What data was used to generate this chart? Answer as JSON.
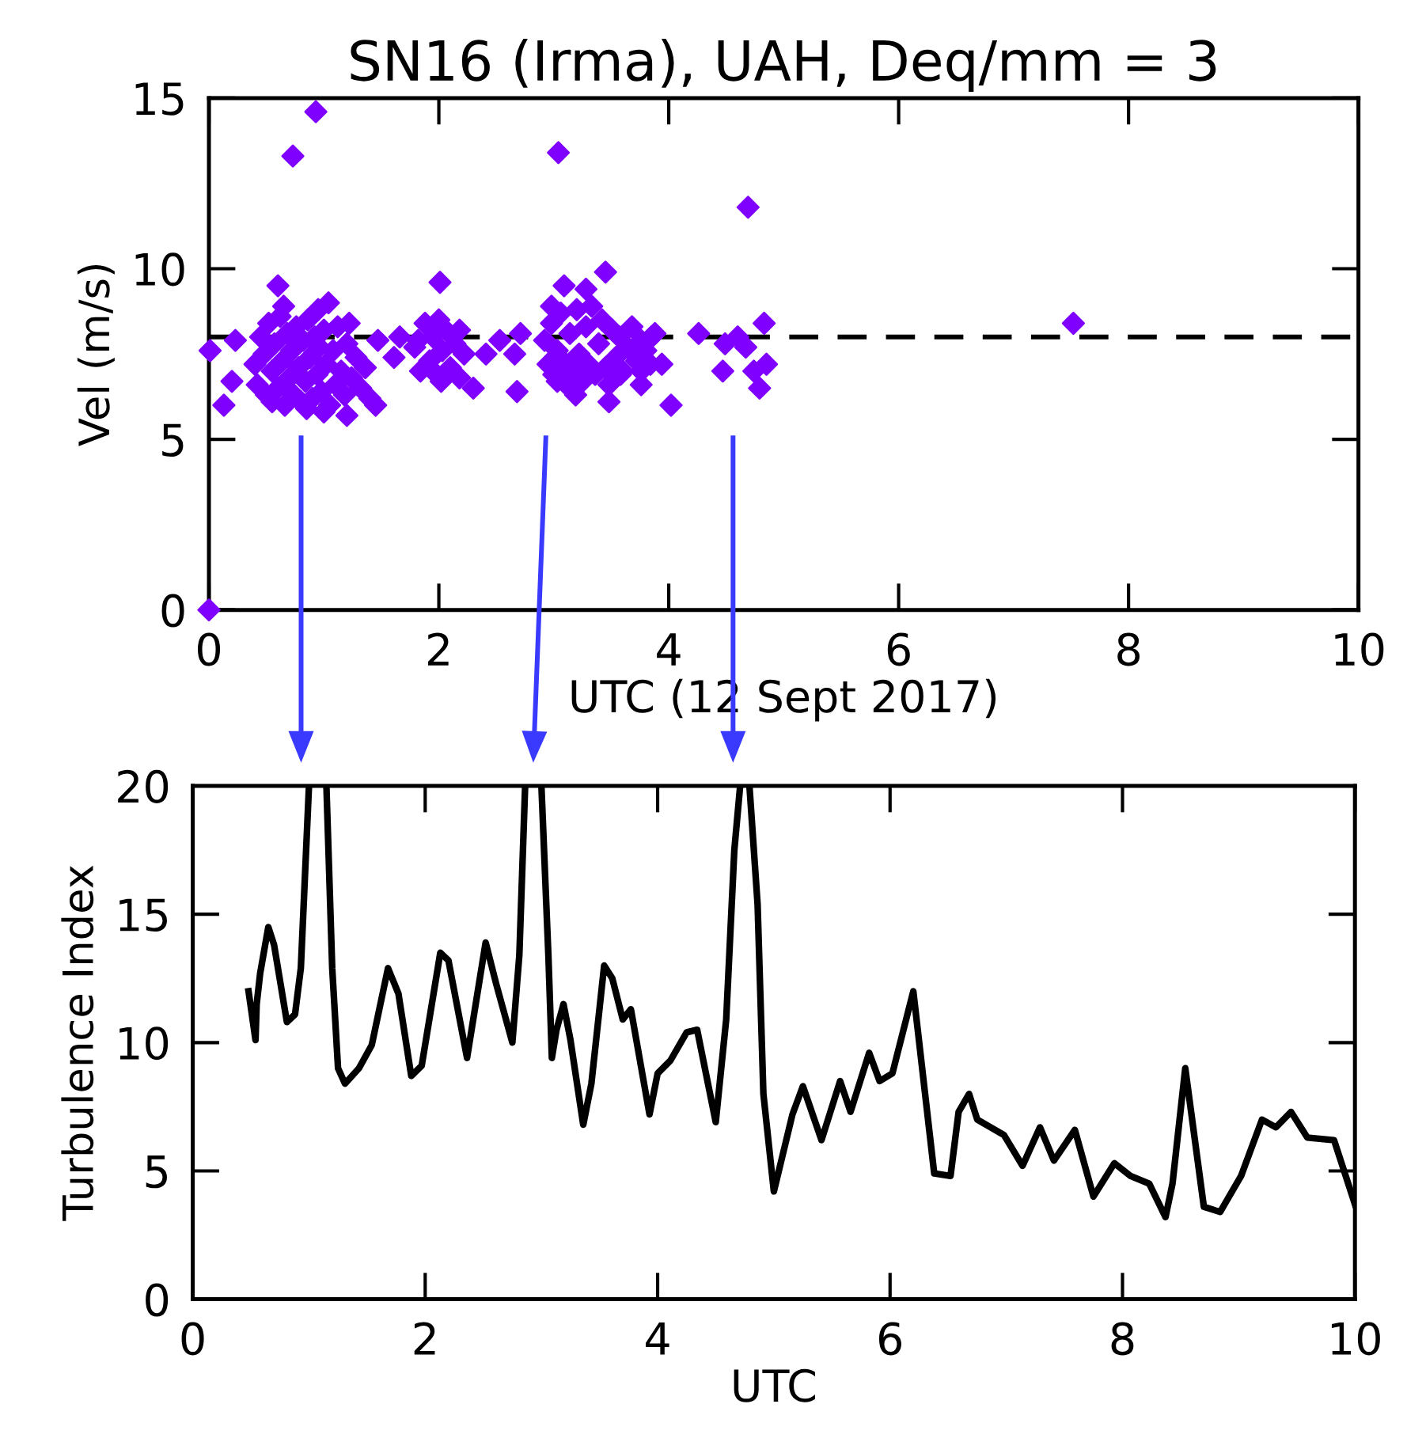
{
  "chart_data": [
    {
      "type": "scatter",
      "title": "SN16 (Irma), UAH, Deq/mm = 3",
      "xlabel": "UTC (12 Sept 2017)",
      "ylabel": "Vel (m/s)",
      "marker": "diamond",
      "grid": false,
      "xlim": [
        0,
        10
      ],
      "ylim": [
        0,
        15
      ],
      "xticks": [
        0,
        2,
        4,
        6,
        8,
        10
      ],
      "yticks": [
        0,
        5,
        10,
        15
      ],
      "ref_lines": [
        {
          "axis": "y",
          "value": 8,
          "color": "#000000",
          "line_style": "dashed"
        }
      ],
      "series": [
        {
          "color": "#8000ff",
          "x": [
            0.93,
            0.73,
            3.04,
            4.69,
            3.45,
            2.01,
            0.6,
            3.09,
            0.01,
            0.2,
            0.13,
            0.23,
            1.2,
            1.45,
            1.22,
            1.04,
            1.47,
            1.61,
            1.66,
            2.0,
            1.79,
            1.84,
            2.18,
            2.3,
            2.41,
            2.53,
            2.66,
            2.68,
            2.71,
            2.02,
            2.98,
            3.28,
            3.03,
            3.19,
            3.48,
            3.58,
            3.76,
            3.94,
            4.02,
            3.76,
            3.85,
            4.26,
            4.47,
            4.6,
            4.83,
            4.85,
            4.79,
            4.74,
            4.67,
            4.49,
            7.52,
            0.0,
            0.4,
            0.42,
            0.45,
            0.48,
            0.5,
            0.52,
            0.55,
            0.57,
            0.6,
            0.62,
            0.64,
            0.66,
            0.68,
            0.7,
            0.72,
            0.74,
            0.76,
            0.78,
            0.8,
            0.82,
            0.84,
            0.86,
            0.88,
            0.9,
            0.92,
            0.94,
            0.96,
            0.98,
            1.0,
            1.02,
            1.05,
            1.08,
            1.1,
            1.12,
            1.15,
            1.18,
            1.2,
            1.24,
            1.28,
            1.32,
            1.36,
            1.4,
            0.55,
            0.85,
            1.0,
            0.65,
            0.95,
            1.82,
            1.88,
            1.92,
            1.95,
            1.98,
            2.03,
            2.06,
            2.1,
            2.14,
            2.18,
            2.22,
            2.92,
            2.95,
            2.98,
            3.0,
            3.03,
            3.06,
            3.08,
            3.11,
            3.14,
            3.17,
            3.2,
            3.22,
            3.25,
            3.28,
            3.3,
            3.33,
            3.36,
            3.39,
            3.42,
            3.45,
            3.48,
            3.51,
            3.54,
            3.57,
            3.6,
            3.64,
            3.68,
            3.72,
            3.76,
            3.8,
            3.84,
            3.88
          ],
          "values": [
            14.6,
            13.3,
            13.4,
            11.8,
            9.9,
            9.6,
            9.5,
            9.5,
            7.6,
            6.7,
            6.0,
            7.9,
            5.7,
            6.0,
            8.4,
            9.0,
            7.9,
            7.4,
            8.0,
            8.5,
            7.7,
            7.0,
            8.2,
            6.5,
            7.5,
            7.9,
            7.5,
            6.4,
            8.1,
            6.7,
            8.9,
            9.4,
            6.7,
            6.3,
            6.1,
            6.9,
            6.6,
            7.2,
            6.0,
            7.0,
            8.0,
            8.1,
            7.0,
            8.0,
            8.4,
            7.2,
            6.5,
            7.0,
            7.7,
            7.8,
            8.4,
            0.0,
            7.2,
            6.6,
            8.0,
            7.5,
            6.3,
            8.4,
            7.0,
            7.8,
            6.5,
            8.6,
            7.3,
            6.0,
            8.1,
            6.8,
            7.6,
            6.3,
            8.3,
            7.1,
            6.1,
            7.9,
            6.7,
            8.5,
            7.4,
            6.2,
            8.0,
            6.9,
            7.7,
            6.4,
            8.2,
            7.2,
            6.0,
            7.6,
            6.6,
            8.3,
            7.0,
            6.3,
            7.8,
            6.8,
            7.4,
            6.5,
            7.1,
            6.2,
            6.1,
            5.9,
            5.8,
            8.9,
            8.8,
            7.9,
            8.4,
            7.3,
            8.0,
            6.9,
            7.6,
            8.2,
            7.1,
            7.8,
            6.8,
            7.5,
            7.9,
            7.2,
            8.4,
            6.9,
            7.6,
            8.7,
            7.3,
            6.6,
            8.1,
            7.0,
            8.8,
            7.5,
            6.7,
            8.3,
            7.2,
            8.9,
            6.9,
            7.8,
            8.5,
            7.1,
            6.6,
            8.2,
            7.4,
            8.0,
            7.0,
            7.7,
            8.3,
            7.3,
            7.9,
            7.6,
            7.2,
            8.1
          ]
        }
      ]
    },
    {
      "type": "line",
      "xlabel": "UTC",
      "ylabel": "Turbulence Index",
      "marker": "none",
      "line_style": "solid",
      "grid": false,
      "xlim": [
        0,
        10
      ],
      "ylim": [
        0,
        20
      ],
      "xticks": [
        0,
        2,
        4,
        6,
        8,
        10
      ],
      "yticks": [
        0,
        5,
        10,
        15,
        20
      ],
      "series": [
        {
          "color": "#000000",
          "x": [
            0.48,
            0.54,
            0.55,
            0.58,
            0.65,
            0.7,
            0.81,
            0.88,
            0.93,
            1.0,
            1.07,
            1.15,
            1.2,
            1.25,
            1.31,
            1.43,
            1.54,
            1.68,
            1.77,
            1.88,
            1.97,
            2.13,
            2.2,
            2.36,
            2.52,
            2.61,
            2.75,
            2.81,
            2.86,
            2.93,
            3.0,
            3.06,
            3.09,
            3.13,
            3.19,
            3.25,
            3.36,
            3.43,
            3.54,
            3.61,
            3.7,
            3.77,
            3.93,
            4.0,
            4.11,
            4.25,
            4.34,
            4.5,
            4.59,
            4.66,
            4.71,
            4.75,
            4.79,
            4.86,
            4.91,
            5.0,
            5.16,
            5.25,
            5.41,
            5.57,
            5.66,
            5.82,
            5.91,
            6.02,
            6.2,
            6.38,
            6.52,
            6.59,
            6.68,
            6.75,
            6.98,
            7.14,
            7.29,
            7.41,
            7.59,
            7.75,
            7.93,
            8.07,
            8.23,
            8.37,
            8.43,
            8.54,
            8.7,
            8.84,
            9.02,
            9.2,
            9.32,
            9.45,
            9.59,
            9.82,
            10.0
          ],
          "values": [
            12.0,
            10.1,
            11.5,
            12.7,
            14.5,
            13.8,
            10.8,
            11.1,
            12.9,
            20.0,
            null,
            20.0,
            12.9,
            9.0,
            8.4,
            9.0,
            9.9,
            12.9,
            11.9,
            8.7,
            9.1,
            13.5,
            13.2,
            9.4,
            13.9,
            12.3,
            10.0,
            13.4,
            20.0,
            null,
            20.0,
            13.4,
            9.4,
            10.5,
            11.5,
            10.1,
            6.8,
            8.4,
            13.0,
            12.5,
            10.9,
            11.3,
            7.2,
            8.8,
            9.3,
            10.4,
            10.5,
            6.9,
            10.9,
            17.5,
            20.0,
            null,
            20.0,
            15.4,
            8.0,
            4.2,
            7.2,
            8.3,
            6.2,
            8.5,
            7.3,
            9.6,
            8.5,
            8.8,
            12.0,
            4.9,
            4.8,
            7.3,
            8.0,
            7.0,
            6.4,
            5.2,
            6.7,
            5.4,
            6.6,
            4.0,
            5.3,
            4.8,
            4.5,
            3.2,
            4.5,
            9.0,
            3.6,
            3.4,
            4.8,
            7.0,
            6.7,
            7.3,
            6.3,
            6.2,
            3.7
          ]
        }
      ]
    }
  ]
}
